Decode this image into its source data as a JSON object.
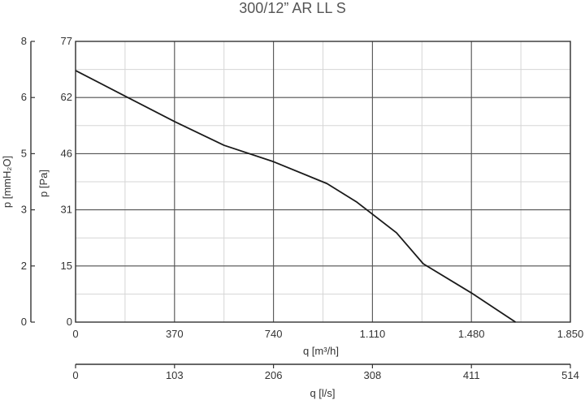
{
  "chart_data": {
    "type": "line",
    "title": "300/12” AR LL S",
    "xlabel": "q [m³/h]",
    "x2label": "q [l/s]",
    "ylabel": "p [Pa]",
    "y2label": "p [mmH₂O]",
    "xlim": [
      0,
      1850
    ],
    "ylim": [
      0,
      77
    ],
    "x_ticks": [
      "0",
      "370",
      "740",
      "1.110",
      "1.480",
      "1.850"
    ],
    "x_tick_values": [
      0,
      370,
      740,
      1110,
      1480,
      1850
    ],
    "x2_ticks": [
      "0",
      "103",
      "206",
      "308",
      "411",
      "514"
    ],
    "y_ticks": [
      "0",
      "15",
      "31",
      "46",
      "62",
      "77"
    ],
    "y_tick_values": [
      0,
      15.4,
      30.8,
      46.2,
      61.6,
      77
    ],
    "y2_ticks": [
      "0",
      "2",
      "3",
      "5",
      "6",
      "8"
    ],
    "grid": true,
    "series": [
      {
        "color": "#1a1a1a",
        "x": [
          0,
          185,
          370,
          555,
          740,
          940,
          1050,
          1200,
          1300,
          1480,
          1645
        ],
        "y": [
          69,
          62,
          55,
          48.5,
          44,
          38,
          33,
          24.5,
          16,
          8,
          0
        ]
      }
    ]
  }
}
